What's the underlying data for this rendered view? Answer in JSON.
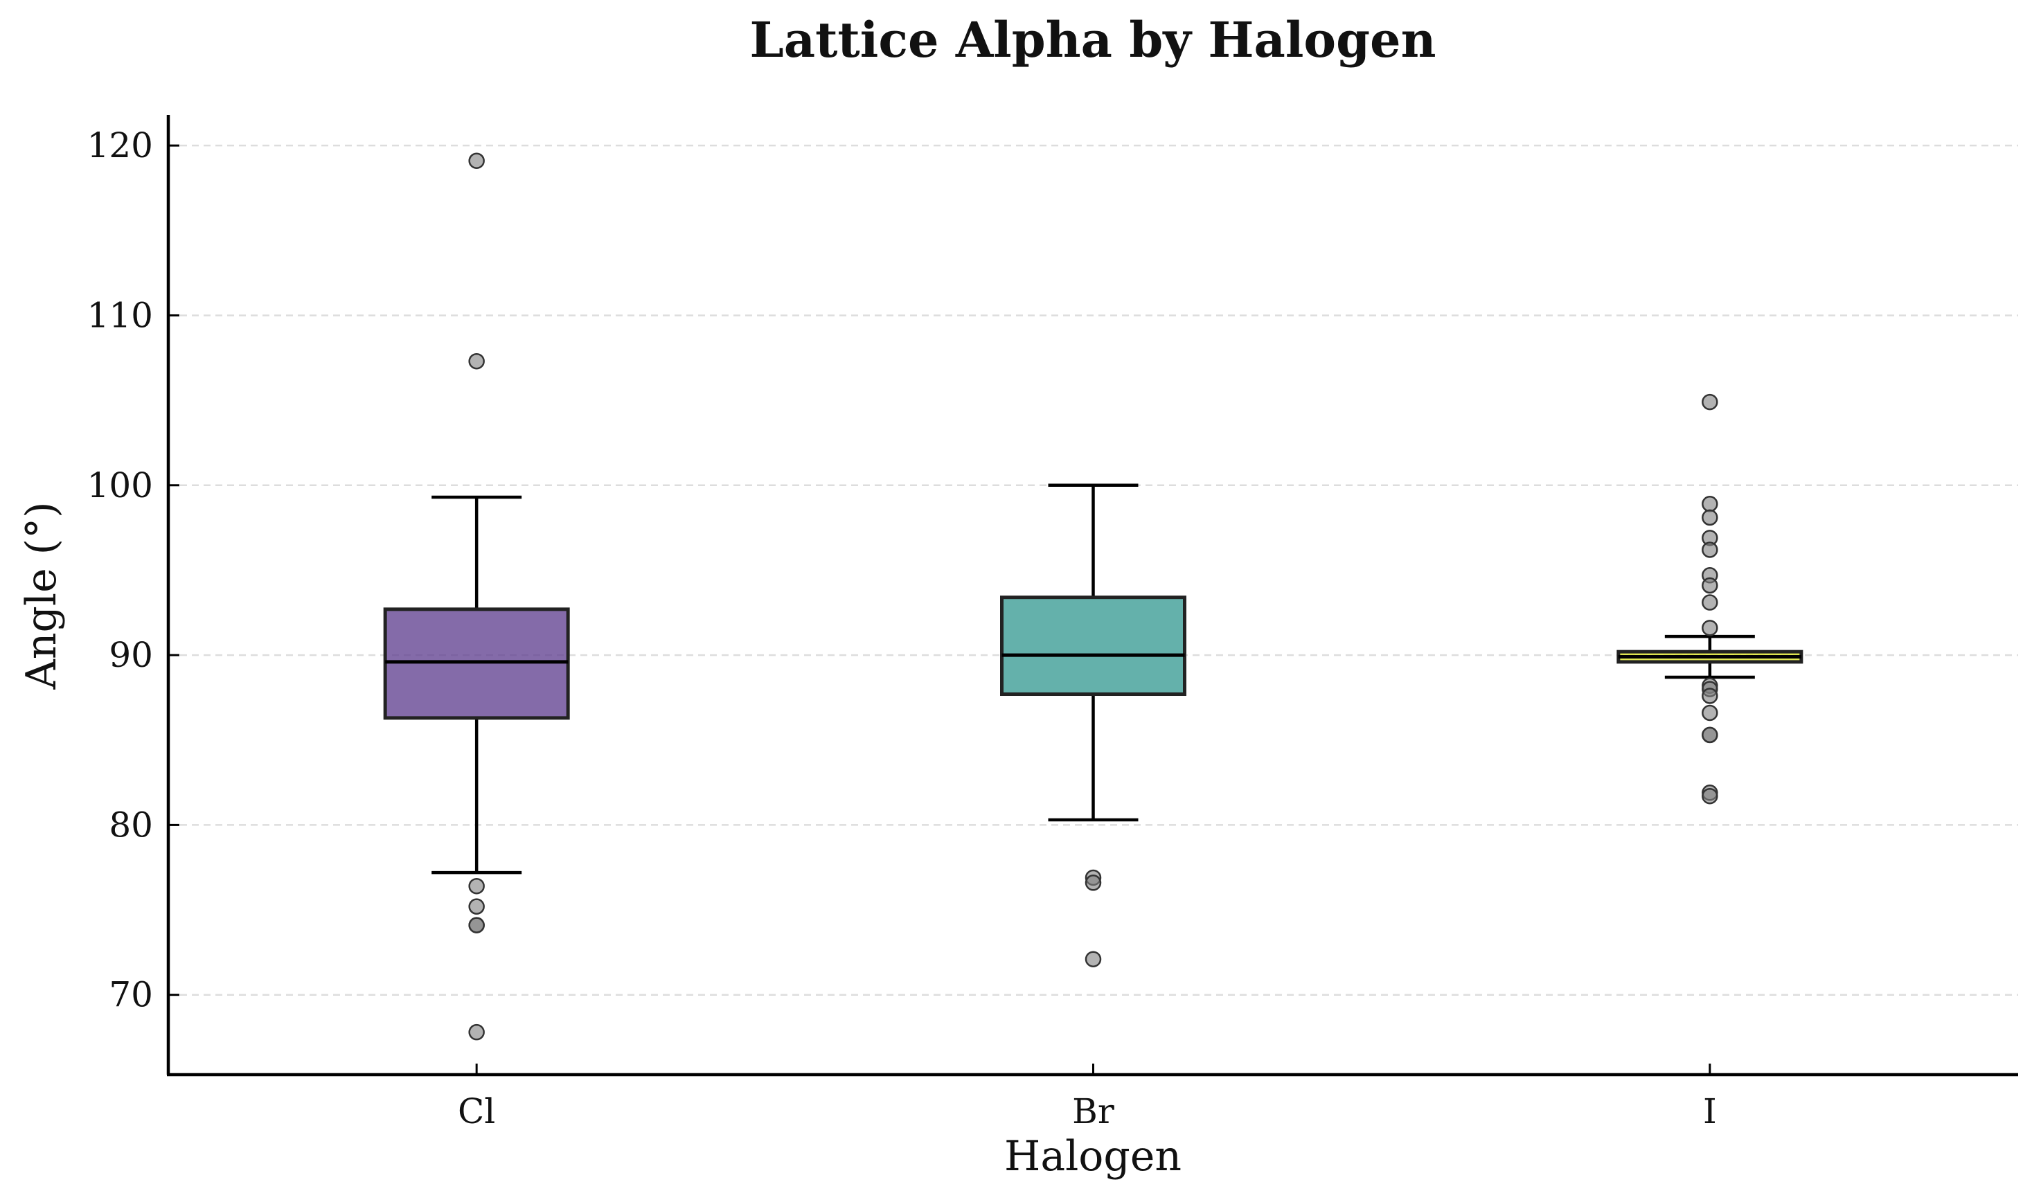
{
  "chart_data": {
    "type": "box",
    "title": "Lattice Alpha by Halogen",
    "xlabel": "Halogen",
    "ylabel": "Angle (°)",
    "ylim": [
      65.3,
      121.8
    ],
    "yticks": [
      70,
      80,
      90,
      100,
      110,
      120
    ],
    "grid": "horizontal dashed",
    "categories": [
      "Cl",
      "Br",
      "I"
    ],
    "boxes": [
      {
        "category": "Cl",
        "color": "#5b3a8c",
        "whisker_low": 77.2,
        "q1": 86.3,
        "median": 89.6,
        "q3": 92.7,
        "whisker_high": 99.3,
        "outliers": [
          119.1,
          107.3,
          76.4,
          75.2,
          74.1,
          74.1,
          67.8
        ]
      },
      {
        "category": "Br",
        "color": "#30978f",
        "whisker_low": 80.3,
        "q1": 87.7,
        "median": 90.0,
        "q3": 93.4,
        "whisker_high": 100.0,
        "outliers": [
          76.9,
          76.6,
          72.1
        ]
      },
      {
        "category": "I",
        "color": "#d8e219",
        "whisker_low": 88.7,
        "q1": 89.6,
        "median": 89.9,
        "q3": 90.2,
        "whisker_high": 91.1,
        "outliers": [
          104.9,
          98.9,
          98.1,
          96.9,
          96.2,
          94.7,
          94.1,
          93.1,
          91.6,
          88.2,
          88.0,
          87.6,
          86.6,
          85.3,
          85.3,
          81.9,
          81.7
        ]
      }
    ]
  }
}
